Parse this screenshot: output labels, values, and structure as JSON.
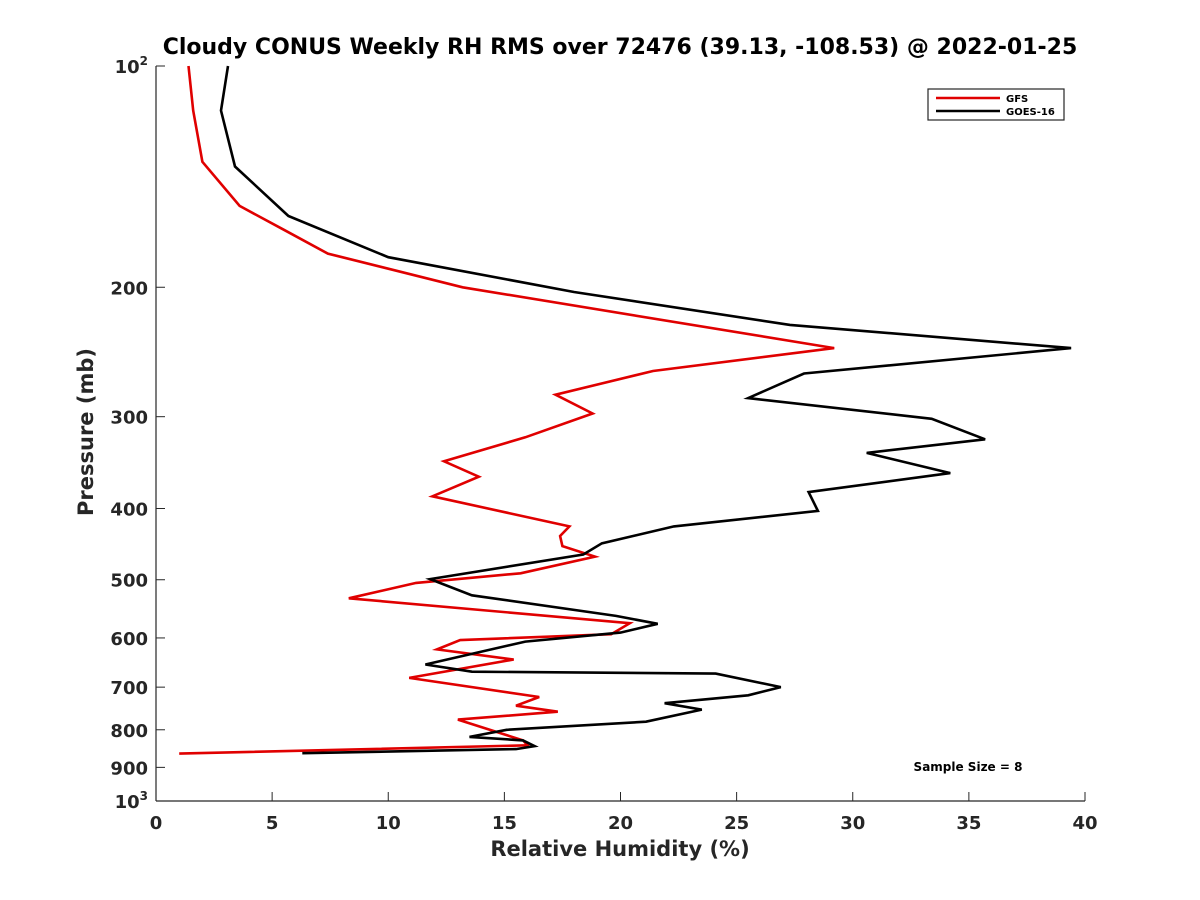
{
  "chart_data": {
    "type": "line",
    "title": "Cloudy CONUS Weekly RH RMS over 72476 (39.13, -108.53) @ 2022-01-25",
    "xlabel": "Relative Humidity (%)",
    "ylabel": "Pressure (mb)",
    "xlim": [
      0,
      40
    ],
    "ylim": [
      100,
      1000
    ],
    "y_scale": "log",
    "y_reversed": true,
    "grid": false,
    "x_ticks": [
      0,
      5,
      10,
      15,
      20,
      25,
      30,
      35,
      40
    ],
    "x_tick_labels": [
      "0",
      "5",
      "10",
      "15",
      "20",
      "25",
      "30",
      "35",
      "40"
    ],
    "y_ticks": [
      {
        "value": 100,
        "base": "10",
        "exp": "2"
      },
      {
        "value": 200,
        "label": "200"
      },
      {
        "value": 300,
        "label": "300"
      },
      {
        "value": 400,
        "label": "400"
      },
      {
        "value": 500,
        "label": "500"
      },
      {
        "value": 600,
        "label": "600"
      },
      {
        "value": 700,
        "label": "700"
      },
      {
        "value": 800,
        "label": "800"
      },
      {
        "value": 900,
        "label": "900"
      },
      {
        "value": 1000,
        "base": "10",
        "exp": "3"
      }
    ],
    "legend_position": "top-right",
    "annotation": "Sample Size = 8",
    "series": [
      {
        "name": "GFS",
        "color": "#e00000",
        "points": [
          [
            1.4,
            100
          ],
          [
            1.6,
            115
          ],
          [
            2.0,
            135
          ],
          [
            3.6,
            155
          ],
          [
            5.5,
            167
          ],
          [
            7.4,
            180
          ],
          [
            13.2,
            200
          ],
          [
            29.2,
            242
          ],
          [
            21.4,
            260
          ],
          [
            17.2,
            280
          ],
          [
            18.8,
            297
          ],
          [
            15.9,
            320
          ],
          [
            12.4,
            345
          ],
          [
            13.9,
            362
          ],
          [
            11.9,
            385
          ],
          [
            17.8,
            423
          ],
          [
            17.4,
            436
          ],
          [
            17.5,
            450
          ],
          [
            18.9,
            465
          ],
          [
            15.7,
            490
          ],
          [
            11.2,
            505
          ],
          [
            8.3,
            530
          ],
          [
            20.4,
            573
          ],
          [
            19.6,
            593
          ],
          [
            13.1,
            604
          ],
          [
            12.1,
            622
          ],
          [
            15.4,
            642
          ],
          [
            10.9,
            680
          ],
          [
            16.5,
            722
          ],
          [
            15.5,
            742
          ],
          [
            17.3,
            756
          ],
          [
            13.0,
            775
          ],
          [
            15.8,
            827
          ],
          [
            16.0,
            840
          ],
          [
            1.0,
            862
          ]
        ]
      },
      {
        "name": "GOES-16",
        "color": "#000000",
        "points": [
          [
            3.1,
            100
          ],
          [
            2.8,
            115
          ],
          [
            3.4,
            137
          ],
          [
            5.7,
            160
          ],
          [
            10.0,
            182
          ],
          [
            18.0,
            203
          ],
          [
            27.3,
            225
          ],
          [
            39.4,
            242
          ],
          [
            27.9,
            262
          ],
          [
            25.5,
            283
          ],
          [
            33.4,
            302
          ],
          [
            35.7,
            322
          ],
          [
            30.6,
            336
          ],
          [
            34.2,
            358
          ],
          [
            28.1,
            380
          ],
          [
            28.5,
            403
          ],
          [
            22.3,
            423
          ],
          [
            19.2,
            446
          ],
          [
            18.4,
            462
          ],
          [
            11.8,
            499
          ],
          [
            13.6,
            525
          ],
          [
            19.8,
            560
          ],
          [
            21.6,
            574
          ],
          [
            20.0,
            590
          ],
          [
            15.9,
            607
          ],
          [
            11.6,
            652
          ],
          [
            13.6,
            667
          ],
          [
            24.1,
            671
          ],
          [
            26.9,
            700
          ],
          [
            25.5,
            718
          ],
          [
            21.9,
            736
          ],
          [
            23.5,
            751
          ],
          [
            21.1,
            780
          ],
          [
            15.1,
            800
          ],
          [
            13.5,
            818
          ],
          [
            15.8,
            827
          ],
          [
            16.3,
            842
          ],
          [
            15.5,
            850
          ],
          [
            6.3,
            861
          ]
        ]
      }
    ]
  }
}
